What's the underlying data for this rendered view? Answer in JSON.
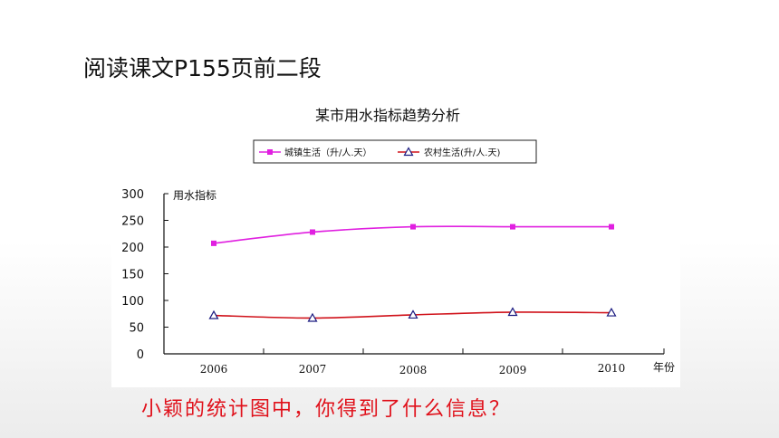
{
  "slide": {
    "heading": "阅读课文P155页前二段",
    "question": "小颖的统计图中，你得到了什么信息？"
  },
  "chart_data": {
    "type": "line",
    "title": "某市用水指标趋势分析",
    "ylabel": "用水指标",
    "xlabel": "年份",
    "categories": [
      "2006",
      "2007",
      "2008",
      "2009",
      "2010"
    ],
    "ylim": [
      0,
      300
    ],
    "yticks": [
      0,
      50,
      100,
      150,
      200,
      250,
      300
    ],
    "legend_position": "top",
    "series": [
      {
        "name": "城镇生活（升/人.天）",
        "values": [
          207,
          228,
          238,
          238,
          238
        ],
        "color": "#e020e0",
        "marker": "square"
      },
      {
        "name": "农村生活(升/人.天)",
        "values": [
          72,
          67,
          73,
          78,
          77
        ],
        "color": "#d0121a",
        "marker": "triangle"
      }
    ]
  }
}
